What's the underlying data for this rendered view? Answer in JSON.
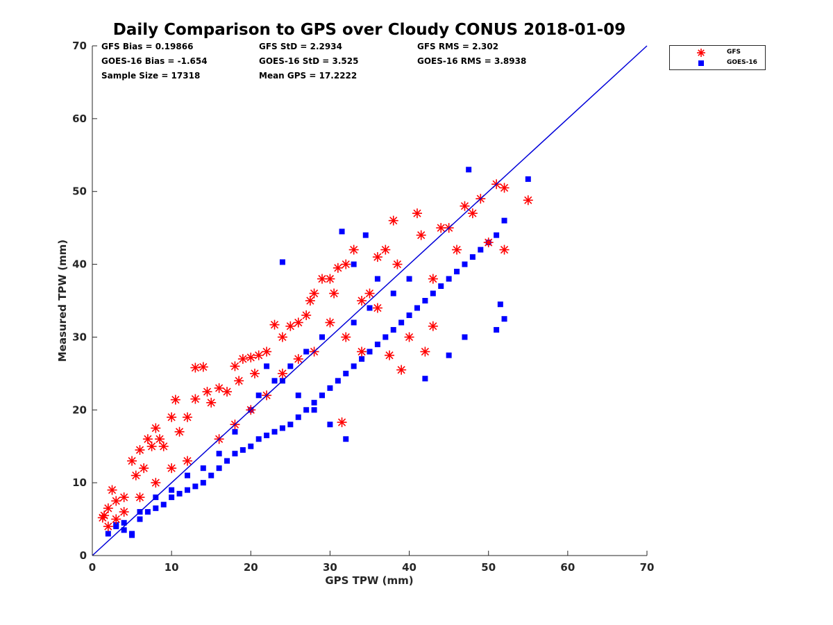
{
  "chart_data": {
    "type": "scatter",
    "title": "Daily Comparison to GPS over Cloudy CONUS 2018-01-09",
    "xlabel": "GPS TPW (mm)",
    "ylabel": "Measured TPW (mm)",
    "xlim": [
      0,
      70
    ],
    "ylim": [
      0,
      70
    ],
    "xticks": [
      "0",
      "10",
      "20",
      "30",
      "40",
      "50",
      "60",
      "70"
    ],
    "yticks": [
      "0",
      "10",
      "20",
      "30",
      "40",
      "50",
      "60",
      "70"
    ],
    "grid": false,
    "legend_position": "outside-top-right",
    "reference_line": {
      "from": [
        0,
        0
      ],
      "to": [
        70,
        70
      ],
      "color": "#0000d9"
    },
    "stats": {
      "gfs_bias": "GFS Bias = 0.19866",
      "gfs_std": "GFS StD = 2.2934",
      "gfs_rms": "GFS RMS = 2.302",
      "goes_bias": "GOES-16 Bias = -1.654",
      "goes_std": "GOES-16 StD = 3.525",
      "goes_rms": "GOES-16 RMS = 3.8938",
      "sample_size": "Sample Size = 17318",
      "mean_gps": "Mean GPS = 17.2222"
    },
    "series": [
      {
        "name": "GFS",
        "marker": "asterisk",
        "color": "#ff0000",
        "points": [
          [
            1.5,
            5.5
          ],
          [
            2,
            6.5
          ],
          [
            2.5,
            9
          ],
          [
            3,
            7.5
          ],
          [
            4,
            8
          ],
          [
            5,
            13
          ],
          [
            5.5,
            11
          ],
          [
            6,
            14.5
          ],
          [
            6.5,
            12
          ],
          [
            7,
            16
          ],
          [
            7.5,
            15
          ],
          [
            8,
            17.5
          ],
          [
            8.5,
            16
          ],
          [
            9,
            15
          ],
          [
            10,
            19
          ],
          [
            10.5,
            21.4
          ],
          [
            11,
            17
          ],
          [
            12,
            19
          ],
          [
            13,
            21.5
          ],
          [
            13,
            25.8
          ],
          [
            14,
            25.9
          ],
          [
            14.5,
            22.5
          ],
          [
            15,
            21
          ],
          [
            16,
            23
          ],
          [
            17,
            22.5
          ],
          [
            18,
            26
          ],
          [
            18.5,
            24
          ],
          [
            19,
            27
          ],
          [
            20,
            27.2
          ],
          [
            20.5,
            25
          ],
          [
            21,
            27.5
          ],
          [
            22,
            28
          ],
          [
            23,
            31.7
          ],
          [
            24,
            30
          ],
          [
            25,
            31.5
          ],
          [
            26,
            32
          ],
          [
            27,
            33
          ],
          [
            27.5,
            35
          ],
          [
            28,
            36
          ],
          [
            29,
            38
          ],
          [
            30,
            38
          ],
          [
            30.5,
            36
          ],
          [
            31,
            39.5
          ],
          [
            32,
            40
          ],
          [
            33,
            42
          ],
          [
            34,
            35
          ],
          [
            35,
            36
          ],
          [
            36,
            41
          ],
          [
            37,
            42
          ],
          [
            37.5,
            27.5
          ],
          [
            38,
            46
          ],
          [
            38.5,
            40
          ],
          [
            39,
            25.5
          ],
          [
            40,
            30
          ],
          [
            41,
            47
          ],
          [
            41.5,
            44
          ],
          [
            42,
            28
          ],
          [
            43,
            31.5
          ],
          [
            43,
            38
          ],
          [
            44,
            45
          ],
          [
            45,
            45
          ],
          [
            46,
            42
          ],
          [
            47,
            48
          ],
          [
            48,
            47
          ],
          [
            49,
            49
          ],
          [
            50,
            43
          ],
          [
            51,
            51
          ],
          [
            52,
            50.5
          ],
          [
            52,
            42
          ],
          [
            55,
            48.8
          ],
          [
            31.5,
            18.3
          ],
          [
            26,
            27
          ],
          [
            28,
            28
          ],
          [
            30,
            32
          ],
          [
            32,
            30
          ],
          [
            34,
            28
          ],
          [
            36,
            34
          ],
          [
            24,
            25
          ],
          [
            22,
            22
          ],
          [
            20,
            20
          ],
          [
            18,
            18
          ],
          [
            16,
            16
          ],
          [
            12,
            13
          ],
          [
            10,
            12
          ],
          [
            8,
            10
          ],
          [
            6,
            8
          ],
          [
            4,
            6
          ],
          [
            3,
            5
          ],
          [
            2,
            4
          ],
          [
            1.3,
            5.2
          ]
        ]
      },
      {
        "name": "GOES-16",
        "marker": "square",
        "color": "#0000ff",
        "points": [
          [
            2,
            3
          ],
          [
            3,
            4
          ],
          [
            4,
            4.5
          ],
          [
            5,
            3
          ],
          [
            6,
            5
          ],
          [
            7,
            6
          ],
          [
            8,
            6.5
          ],
          [
            9,
            7
          ],
          [
            10,
            8
          ],
          [
            11,
            8.5
          ],
          [
            12,
            9
          ],
          [
            13,
            9.5
          ],
          [
            14,
            10
          ],
          [
            15,
            11
          ],
          [
            16,
            12
          ],
          [
            17,
            13
          ],
          [
            18,
            14
          ],
          [
            19,
            14.5
          ],
          [
            20,
            15
          ],
          [
            21,
            16
          ],
          [
            22,
            16.5
          ],
          [
            23,
            17
          ],
          [
            24,
            17.5
          ],
          [
            25,
            18
          ],
          [
            26,
            19
          ],
          [
            27,
            20
          ],
          [
            28,
            21
          ],
          [
            29,
            22
          ],
          [
            30,
            23
          ],
          [
            31,
            24
          ],
          [
            32,
            25
          ],
          [
            33,
            26
          ],
          [
            34,
            27
          ],
          [
            35,
            28
          ],
          [
            36,
            29
          ],
          [
            37,
            30
          ],
          [
            38,
            31
          ],
          [
            39,
            32
          ],
          [
            40,
            33
          ],
          [
            41,
            34
          ],
          [
            42,
            35
          ],
          [
            43,
            36
          ],
          [
            44,
            37
          ],
          [
            45,
            38
          ],
          [
            46,
            39
          ],
          [
            47,
            40
          ],
          [
            48,
            41
          ],
          [
            49,
            42
          ],
          [
            50,
            43
          ],
          [
            51,
            44
          ],
          [
            52,
            46
          ],
          [
            47.5,
            53
          ],
          [
            55,
            51.7
          ],
          [
            51,
            31
          ],
          [
            51.5,
            34.5
          ],
          [
            52,
            32.5
          ],
          [
            47,
            30
          ],
          [
            45,
            27.5
          ],
          [
            42,
            24.3
          ],
          [
            32,
            16
          ],
          [
            30,
            18
          ],
          [
            28,
            20
          ],
          [
            26,
            22
          ],
          [
            24,
            24
          ],
          [
            22,
            26
          ],
          [
            20,
            20
          ],
          [
            18,
            17
          ],
          [
            16,
            14
          ],
          [
            14,
            12
          ],
          [
            12,
            11
          ],
          [
            10,
            9
          ],
          [
            8,
            8
          ],
          [
            6,
            6
          ],
          [
            5,
            2.8
          ],
          [
            4,
            3.5
          ],
          [
            3,
            4.2
          ],
          [
            24,
            40.3
          ],
          [
            31.5,
            44.5
          ],
          [
            34.5,
            44
          ],
          [
            33,
            40
          ],
          [
            36,
            38
          ],
          [
            38,
            36
          ],
          [
            40,
            38
          ],
          [
            35,
            34
          ],
          [
            33,
            32
          ],
          [
            29,
            30
          ],
          [
            27,
            28
          ],
          [
            25,
            26
          ],
          [
            23,
            24
          ],
          [
            21,
            22
          ]
        ]
      }
    ]
  }
}
